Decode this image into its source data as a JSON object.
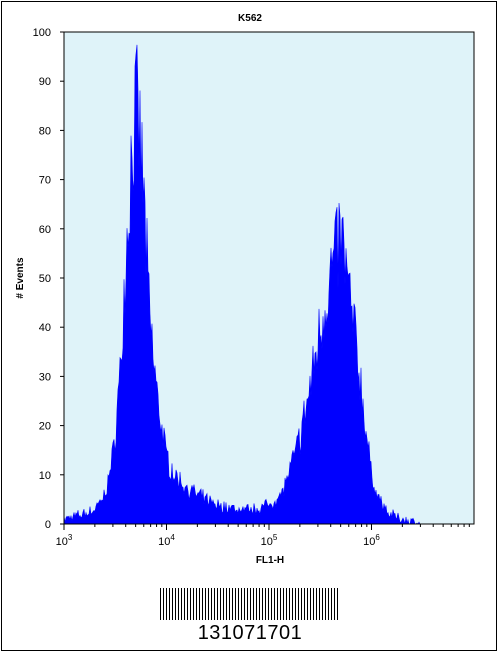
{
  "chart_data": {
    "type": "area",
    "title": "K562",
    "xlabel": "FL1-H",
    "ylabel": "# Events",
    "x_scale": "log",
    "xlim": [
      1000,
      10000000
    ],
    "ylim": [
      0,
      100
    ],
    "x_tick_labels": [
      {
        "base": "10",
        "exp": "3",
        "value": 1000
      },
      {
        "base": "10",
        "exp": "4",
        "value": 10000
      },
      {
        "base": "10",
        "exp": "5",
        "value": 100000
      },
      {
        "base": "10",
        "exp": "6",
        "value": 1000000
      }
    ],
    "y_ticks": [
      0,
      10,
      20,
      30,
      40,
      50,
      60,
      70,
      80,
      90,
      100
    ],
    "y_tick_labels": [
      "0",
      "10",
      "20",
      "30",
      "40",
      "50",
      "60",
      "70",
      "80",
      "90",
      "100"
    ],
    "series": [
      {
        "color": "#0000ff",
        "x": [
          1000,
          1500,
          2000,
          2500,
          3000,
          3500,
          4000,
          4500,
          5000,
          5500,
          6000,
          6500,
          7000,
          8000,
          9000,
          10000,
          12000,
          15000,
          20000,
          30000,
          50000,
          70000,
          100000,
          130000,
          160000,
          200000,
          250000,
          300000,
          350000,
          400000,
          450000,
          500000,
          550000,
          600000,
          700000,
          800000,
          900000,
          1000000,
          1200000,
          1500000,
          2000000,
          2500000,
          3000000
        ],
        "y": [
          1,
          2,
          3,
          6,
          14,
          30,
          55,
          75,
          86,
          80,
          68,
          52,
          40,
          28,
          20,
          14,
          10,
          8,
          6,
          4,
          3,
          3,
          4,
          6,
          11,
          18,
          28,
          38,
          46,
          52,
          56,
          60,
          55,
          48,
          38,
          28,
          18,
          10,
          5,
          2,
          1,
          0.5,
          0
        ]
      }
    ],
    "grid": false,
    "background_color": "#dff3f9"
  },
  "barcode": {
    "number": "131071701"
  }
}
